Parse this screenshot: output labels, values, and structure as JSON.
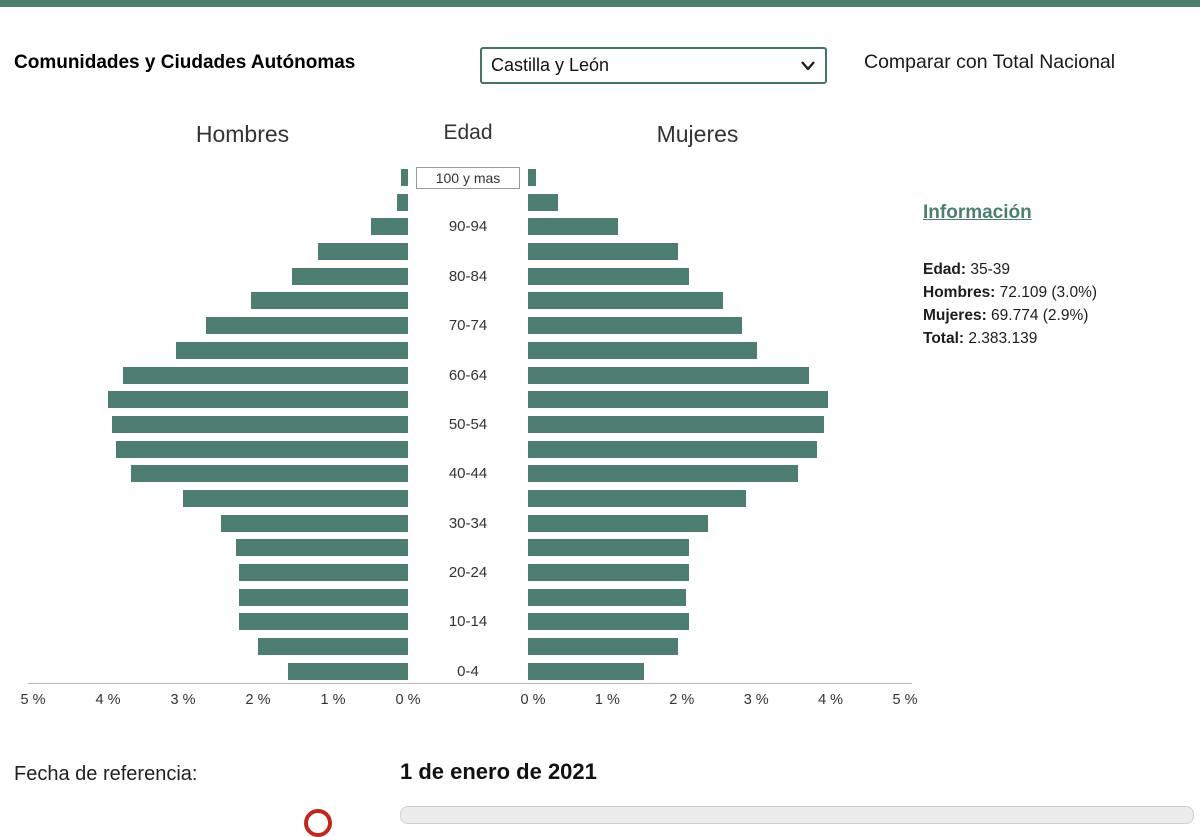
{
  "header": {
    "region_label": "Comunidades y Ciudades Autónomas",
    "region_selected": "Castilla y León",
    "compare_link": "Comparar con Total Nacional"
  },
  "chart": {
    "left_title": "Hombres",
    "center_title": "Edad",
    "right_title": "Mujeres"
  },
  "info": {
    "title": "Información",
    "rows": [
      {
        "label": "Edad:",
        "value": "35-39"
      },
      {
        "label": "Hombres:",
        "value": "72.109 (3.0%)"
      },
      {
        "label": "Mujeres:",
        "value": "69.774 (2.9%)"
      },
      {
        "label": "Total:",
        "value": "2.383.139"
      }
    ]
  },
  "footer": {
    "reference_label": "Fecha de referencia:",
    "reference_date": "1 de enero de 2021"
  },
  "colors": {
    "accent": "#4d7f71",
    "bar": "#4e7e71"
  },
  "chart_data": {
    "type": "bar",
    "subtype": "population_pyramid",
    "age_groups": [
      "100 y mas",
      "95-99",
      "90-94",
      "85-89",
      "80-84",
      "75-79",
      "70-74",
      "65-69",
      "60-64",
      "55-59",
      "50-54",
      "45-49",
      "40-44",
      "35-39",
      "30-34",
      "25-29",
      "20-24",
      "15-19",
      "10-14",
      "5-9",
      "0-4"
    ],
    "labeled_groups": [
      "100 y mas",
      "90-94",
      "80-84",
      "70-74",
      "60-64",
      "50-54",
      "40-44",
      "30-34",
      "20-24",
      "10-14",
      "0-4"
    ],
    "series": [
      {
        "name": "Hombres",
        "values": [
          0.1,
          0.15,
          0.5,
          1.2,
          1.55,
          2.1,
          2.7,
          3.1,
          3.8,
          4.0,
          3.95,
          3.9,
          3.7,
          3.0,
          2.5,
          2.3,
          2.25,
          2.25,
          2.25,
          2.0,
          1.6
        ]
      },
      {
        "name": "Mujeres",
        "values": [
          0.1,
          0.4,
          1.2,
          2.0,
          2.15,
          2.6,
          2.85,
          3.05,
          3.75,
          4.0,
          3.95,
          3.85,
          3.6,
          2.9,
          2.4,
          2.15,
          2.15,
          2.1,
          2.15,
          2.0,
          1.55
        ]
      }
    ],
    "x_tick_values": [
      0,
      1,
      2,
      3,
      4,
      5
    ],
    "x_tick_labels": [
      "0 %",
      "1 %",
      "2 %",
      "3 %",
      "4 %",
      "5 %"
    ],
    "xlim": [
      0,
      5
    ],
    "legend_position": "column-titles",
    "grid": false
  }
}
